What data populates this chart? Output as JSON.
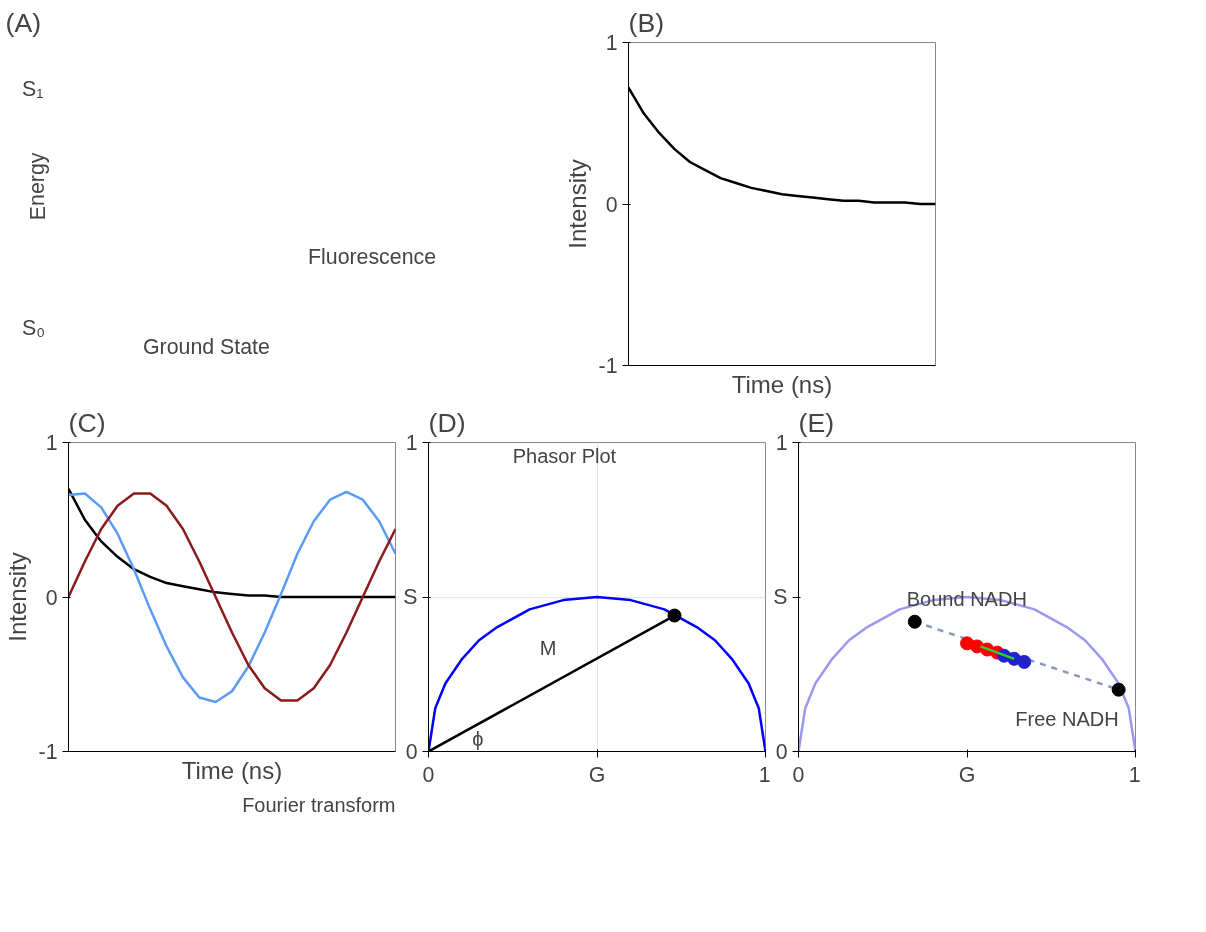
{
  "chart_data": [
    {
      "type": "other",
      "title": "(A)",
      "annotations": [
        "S₁",
        "S₀",
        "Energy",
        "Fluorescence",
        "Ground State"
      ]
    },
    {
      "type": "line",
      "title": "(B)",
      "xlabel": "Time (ns)",
      "ylabel": "Intensity",
      "categories": [
        null,
        null,
        null,
        null,
        null,
        null,
        null,
        null,
        null,
        null,
        null,
        null,
        null,
        null,
        null,
        null,
        null,
        null,
        null,
        null,
        null
      ],
      "ylim": [
        -1,
        1
      ],
      "yticks": [
        -1,
        0,
        1
      ],
      "grid": false,
      "series": [
        {
          "color": "#000000",
          "values": [
            0.72,
            0.56,
            0.44,
            0.34,
            0.26,
            0.21,
            0.16,
            0.13,
            0.1,
            0.08,
            0.06,
            0.05,
            0.04,
            0.03,
            0.02,
            0.02,
            0.01,
            0.01,
            0.01,
            0.0,
            0.0
          ]
        }
      ]
    },
    {
      "type": "line",
      "title": "(C)",
      "xlabel": "Time (ns)",
      "ylabel": "Intensity",
      "categories": [
        null,
        null,
        null,
        null,
        null,
        null,
        null,
        null,
        null,
        null,
        null,
        null,
        null,
        null,
        null,
        null,
        null,
        null,
        null,
        null,
        null
      ],
      "ylim": [
        -1,
        1
      ],
      "yticks": [
        -1,
        0,
        1
      ],
      "grid": false,
      "annotations": [
        "Fourier transform"
      ],
      "series": [
        {
          "color": "#000000",
          "values": [
            0.7,
            0.5,
            0.36,
            0.26,
            0.18,
            0.13,
            0.09,
            0.07,
            0.05,
            0.03,
            0.02,
            0.01,
            0.01,
            0.0,
            0.0,
            0.0,
            0.0,
            0.0,
            0.0,
            0.0,
            0.0
          ]
        },
        {
          "color": "#5b9bf5",
          "values": [
            0.66,
            0.67,
            0.58,
            0.41,
            0.18,
            -0.08,
            -0.32,
            -0.52,
            -0.65,
            -0.68,
            -0.61,
            -0.45,
            -0.23,
            0.02,
            0.28,
            0.49,
            0.63,
            0.68,
            0.63,
            0.49,
            0.28
          ]
        },
        {
          "color": "#8b1a1a",
          "values": [
            0.0,
            0.23,
            0.44,
            0.59,
            0.67,
            0.67,
            0.59,
            0.44,
            0.23,
            0.0,
            -0.23,
            -0.44,
            -0.59,
            -0.67,
            -0.67,
            -0.59,
            -0.44,
            -0.23,
            0.0,
            0.23,
            0.44
          ]
        }
      ]
    },
    {
      "type": "line",
      "title": "(D)",
      "xlim": [
        0,
        1
      ],
      "ylim": [
        0,
        1
      ],
      "xticks": [
        0,
        {
          "value": 0.5,
          "label": "G"
        },
        1
      ],
      "yticks": [
        0,
        {
          "value": 0.5,
          "label": "S"
        },
        1
      ],
      "grid": true,
      "annotations": [
        "Phasor Plot",
        "M",
        "ϕ"
      ],
      "series": [
        {
          "type": "line",
          "color": "#0000ff",
          "x": [
            0,
            0.02,
            0.05,
            0.1,
            0.15,
            0.2,
            0.3,
            0.4,
            0.5,
            0.6,
            0.7,
            0.8,
            0.85,
            0.9,
            0.95,
            0.98,
            1
          ],
          "values": [
            0,
            0.14,
            0.22,
            0.3,
            0.36,
            0.4,
            0.46,
            0.49,
            0.5,
            0.49,
            0.46,
            0.4,
            0.36,
            0.3,
            0.22,
            0.14,
            0
          ]
        },
        {
          "type": "line",
          "color": "#000000",
          "x": [
            0,
            0.73
          ],
          "values": [
            0,
            0.44
          ]
        },
        {
          "type": "scatter",
          "color": "#000000",
          "x": [
            0.73
          ],
          "values": [
            0.44
          ]
        }
      ]
    },
    {
      "type": "line",
      "title": "(E)",
      "xlim": [
        0,
        1
      ],
      "ylim": [
        0,
        1
      ],
      "xticks": [
        0,
        {
          "value": 0.5,
          "label": "G"
        },
        1
      ],
      "yticks": [
        0,
        {
          "value": 0.5,
          "label": "S"
        },
        1
      ],
      "grid": false,
      "annotations": [
        {
          "text": "Bound NADH",
          "x": 0.345,
          "y": 0.42
        },
        {
          "text": "Free NADH",
          "x": 0.95,
          "y": 0.2
        }
      ],
      "series": [
        {
          "type": "line",
          "color": "#9999ee",
          "x": [
            0,
            0.02,
            0.05,
            0.1,
            0.15,
            0.2,
            0.3,
            0.4,
            0.5,
            0.6,
            0.7,
            0.8,
            0.85,
            0.9,
            0.95,
            0.98,
            1
          ],
          "values": [
            0,
            0.14,
            0.22,
            0.3,
            0.36,
            0.4,
            0.46,
            0.49,
            0.5,
            0.49,
            0.46,
            0.4,
            0.36,
            0.3,
            0.22,
            0.14,
            0
          ]
        },
        {
          "type": "line",
          "color": "#8899bb",
          "line_style": "dashed",
          "x": [
            0.345,
            0.95
          ],
          "values": [
            0.42,
            0.2
          ]
        },
        {
          "type": "scatter",
          "color": "#000000",
          "x": [
            0.345,
            0.95
          ],
          "values": [
            0.42,
            0.2
          ]
        },
        {
          "type": "scatter",
          "color": "#ff0000",
          "x": [
            0.5,
            0.53,
            0.56,
            0.59
          ],
          "values": [
            0.35,
            0.34,
            0.33,
            0.32
          ]
        },
        {
          "type": "scatter",
          "color": "#2222cc",
          "x": [
            0.61,
            0.64,
            0.67
          ],
          "values": [
            0.31,
            0.3,
            0.29
          ]
        },
        {
          "type": "line",
          "color": "#33cc33",
          "x": [
            0.54,
            0.64
          ],
          "values": [
            0.34,
            0.3
          ]
        }
      ]
    }
  ]
}
